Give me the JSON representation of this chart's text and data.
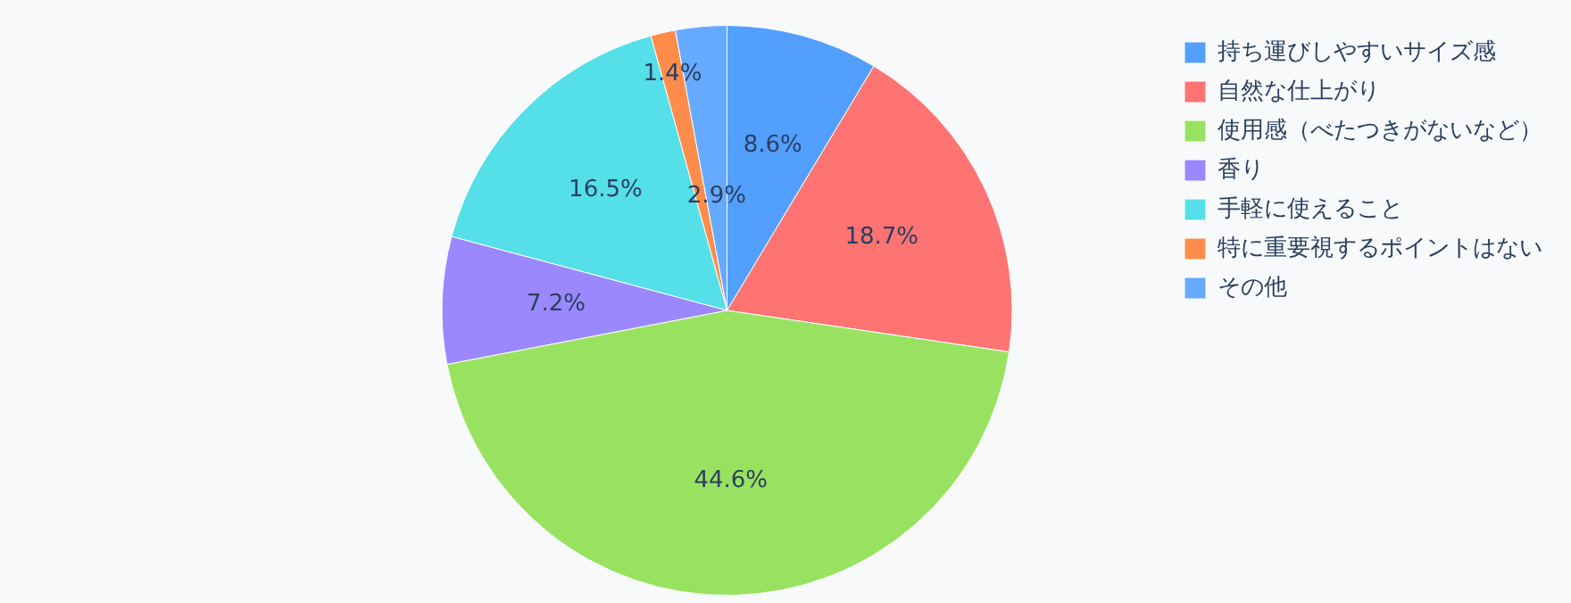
{
  "chart_data": {
    "type": "pie",
    "categories": [
      "持ち運びしやすいサイズ感",
      "自然な仕上がり",
      "使用感（べたつきがないなど）",
      "香り",
      "手軽に使えること",
      "特に重要視するポイントはない",
      "その他"
    ],
    "values": [
      8.6,
      18.7,
      44.6,
      7.2,
      16.5,
      1.4,
      2.9
    ],
    "colors": [
      "#539ffe",
      "#ff7373",
      "#99e261",
      "#9b88fe",
      "#55dfe8",
      "#ff8c4a",
      "#66aaff"
    ],
    "value_labels": [
      "8.6%",
      "18.7%",
      "44.6%",
      "7.2%",
      "16.5%",
      "1.4%",
      "2.9%"
    ],
    "legend": "top right"
  }
}
